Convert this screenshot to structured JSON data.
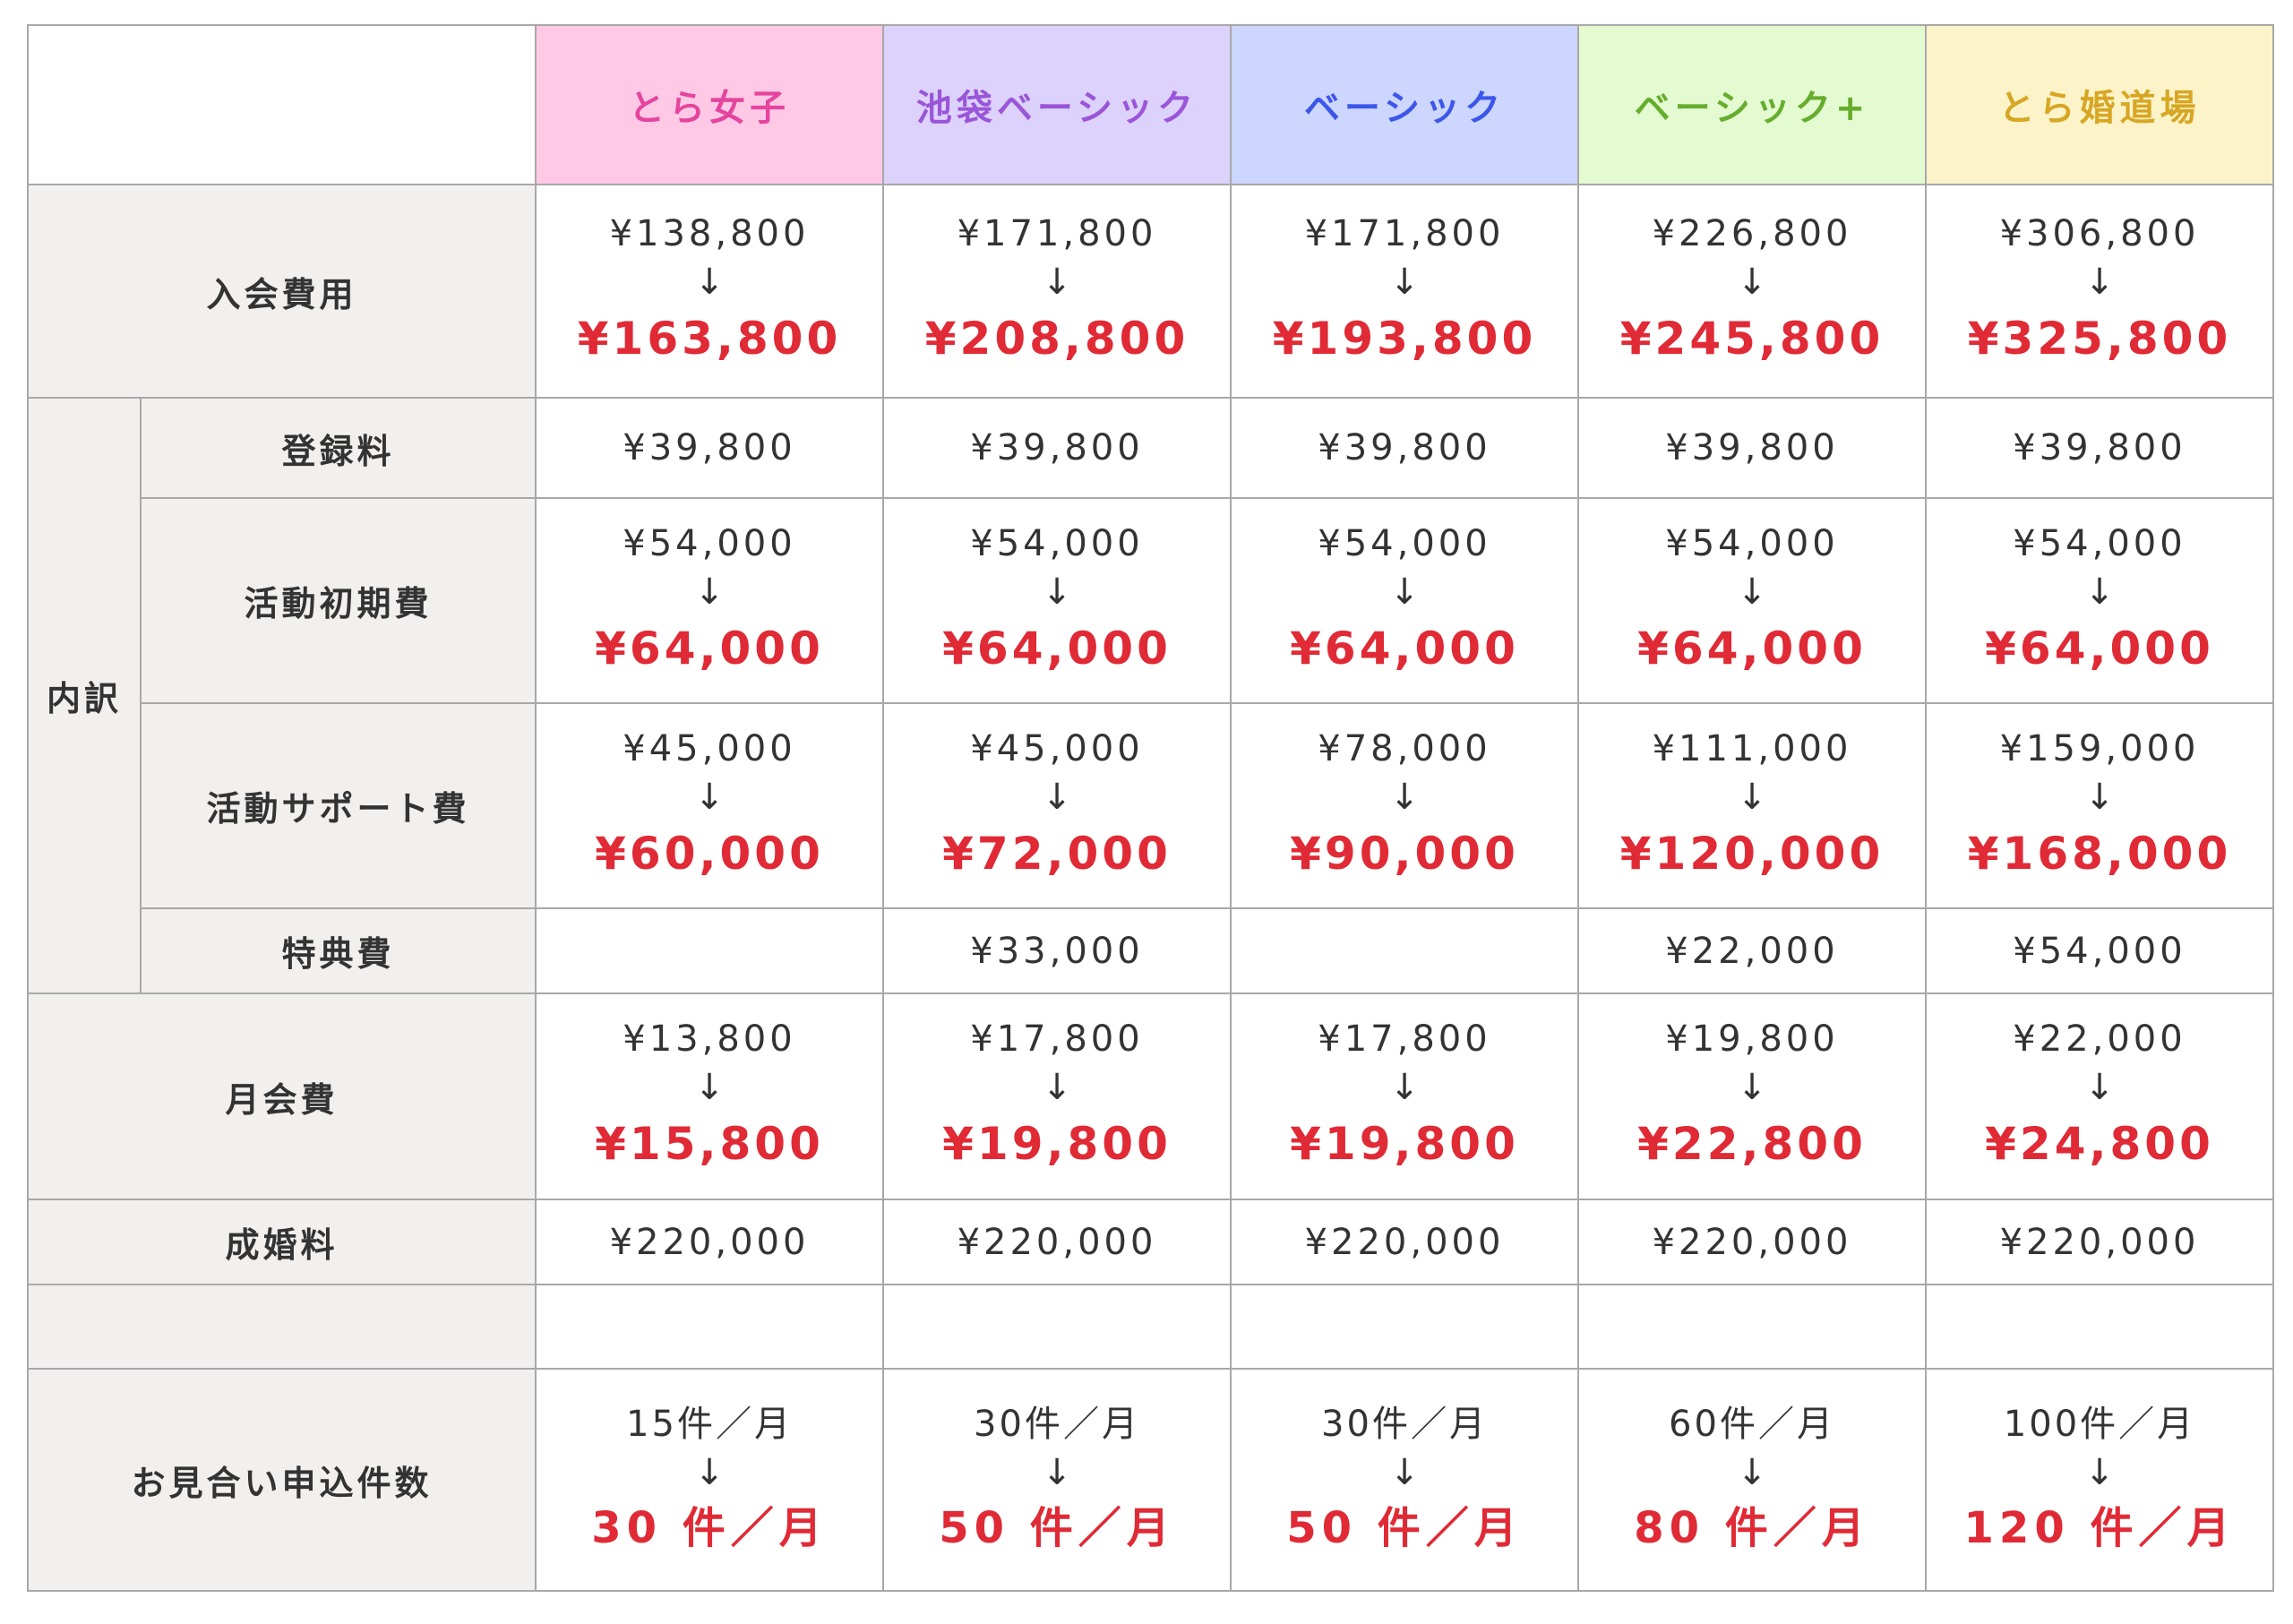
{
  "colors": {
    "header_bg": [
      "#ffc9e6",
      "#dcd2fb",
      "#ccd6ff",
      "#e4fbd2",
      "#fcf3c9"
    ],
    "header_text": [
      "#e5449f",
      "#9a55d8",
      "#3c56ea",
      "#66ad2e",
      "#d7a623"
    ],
    "price_new": "#e02a35",
    "label_bg": "#f2f0ef"
  },
  "plans": [
    "とら女子",
    "池袋ベーシック",
    "ベーシック",
    "ベーシック+",
    "とら婚道場"
  ],
  "rows": {
    "entry": {
      "label": "入会費用",
      "cells": [
        {
          "old": "¥138,800",
          "arrow": "↓",
          "new": "¥163,800"
        },
        {
          "old": "¥171,800",
          "arrow": "↓",
          "new": "¥208,800"
        },
        {
          "old": "¥171,800",
          "arrow": "↓",
          "new": "¥193,800"
        },
        {
          "old": "¥226,800",
          "arrow": "↓",
          "new": "¥245,800"
        },
        {
          "old": "¥306,800",
          "arrow": "↓",
          "new": "¥325,800"
        }
      ]
    },
    "breakdown_label": "内訳",
    "registration": {
      "label": "登録料",
      "cells": [
        "¥39,800",
        "¥39,800",
        "¥39,800",
        "¥39,800",
        "¥39,800"
      ]
    },
    "initial": {
      "label": "活動初期費",
      "cells": [
        {
          "old": "¥54,000",
          "arrow": "↓",
          "new": "¥64,000"
        },
        {
          "old": "¥54,000",
          "arrow": "↓",
          "new": "¥64,000"
        },
        {
          "old": "¥54,000",
          "arrow": "↓",
          "new": "¥64,000"
        },
        {
          "old": "¥54,000",
          "arrow": "↓",
          "new": "¥64,000"
        },
        {
          "old": "¥54,000",
          "arrow": "↓",
          "new": "¥64,000"
        }
      ]
    },
    "support": {
      "label": "活動サポート費",
      "cells": [
        {
          "old": "¥45,000",
          "arrow": "↓",
          "new": "¥60,000"
        },
        {
          "old": "¥45,000",
          "arrow": "↓",
          "new": "¥72,000"
        },
        {
          "old": "¥78,000",
          "arrow": "↓",
          "new": "¥90,000"
        },
        {
          "old": "¥111,000",
          "arrow": "↓",
          "new": "¥120,000"
        },
        {
          "old": "¥159,000",
          "arrow": "↓",
          "new": "¥168,000"
        }
      ]
    },
    "bonus": {
      "label": "特典費",
      "cells": [
        "",
        "¥33,000",
        "",
        "¥22,000",
        "¥54,000"
      ]
    },
    "monthly": {
      "label": "月会費",
      "cells": [
        {
          "old": "¥13,800",
          "arrow": "↓",
          "new": "¥15,800"
        },
        {
          "old": "¥17,800",
          "arrow": "↓",
          "new": "¥19,800"
        },
        {
          "old": "¥17,800",
          "arrow": "↓",
          "new": "¥19,800"
        },
        {
          "old": "¥19,800",
          "arrow": "↓",
          "new": "¥22,800"
        },
        {
          "old": "¥22,000",
          "arrow": "↓",
          "new": "¥24,800"
        }
      ]
    },
    "marriage": {
      "label": "成婚料",
      "cells": [
        "¥220,000",
        "¥220,000",
        "¥220,000",
        "¥220,000",
        "¥220,000"
      ]
    },
    "applications": {
      "label": "お見合い申込件数",
      "cells": [
        {
          "old": "15件／月",
          "arrow": "↓",
          "new": "30 件／月"
        },
        {
          "old": "30件／月",
          "arrow": "↓",
          "new": "50 件／月"
        },
        {
          "old": "30件／月",
          "arrow": "↓",
          "new": "50 件／月"
        },
        {
          "old": "60件／月",
          "arrow": "↓",
          "new": "80 件／月"
        },
        {
          "old": "100件／月",
          "arrow": "↓",
          "new": "120 件／月"
        }
      ]
    }
  }
}
